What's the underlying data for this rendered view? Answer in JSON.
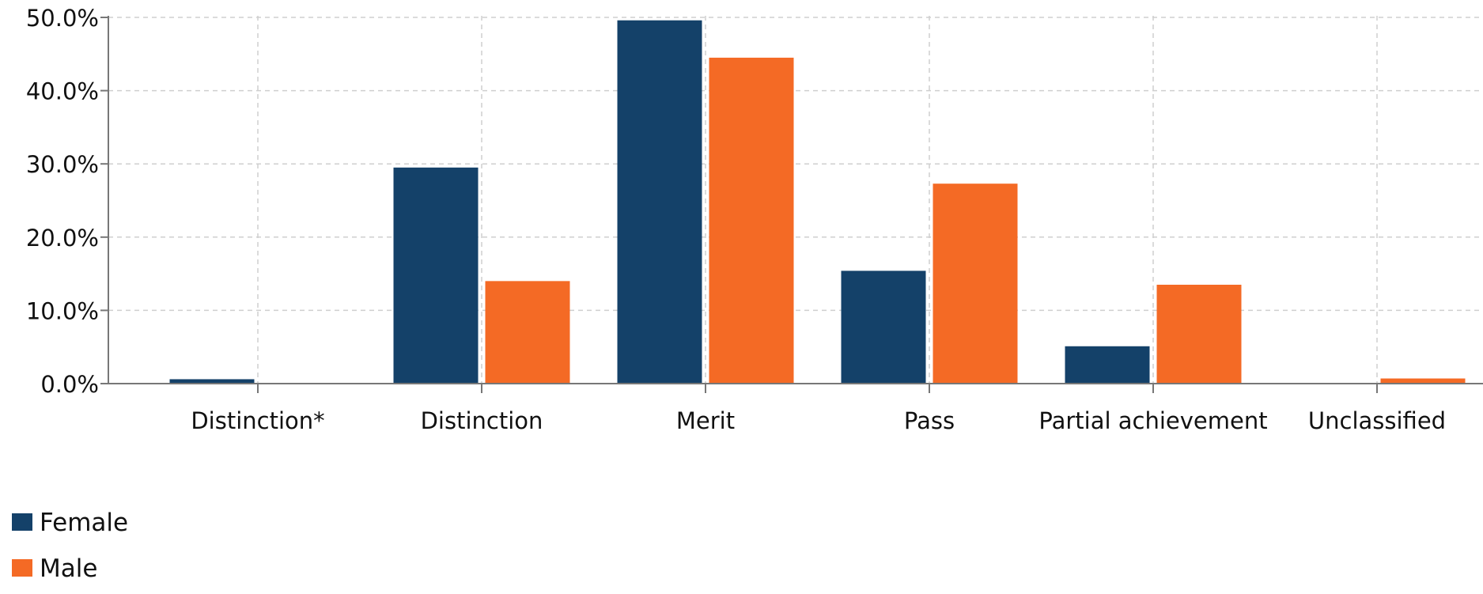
{
  "chart_data": {
    "type": "bar",
    "categories": [
      "Distinction*",
      "Distinction",
      "Merit",
      "Pass",
      "Partial achievement",
      "Unclassified"
    ],
    "series": [
      {
        "name": "Female",
        "color": "#144169",
        "values": [
          0.6,
          29.5,
          49.6,
          15.4,
          5.1,
          0.1
        ]
      },
      {
        "name": "Male",
        "color": "#f46a25",
        "values": [
          0.1,
          14.0,
          44.5,
          27.3,
          13.5,
          0.7
        ]
      }
    ],
    "y_ticks": [
      "0.0%",
      "10.0%",
      "20.0%",
      "30.0%",
      "40.0%",
      "50.0%"
    ],
    "ylim": [
      0,
      50
    ],
    "grid": true,
    "legend_position": "bottom-left",
    "title": "",
    "xlabel": "",
    "ylabel": ""
  }
}
